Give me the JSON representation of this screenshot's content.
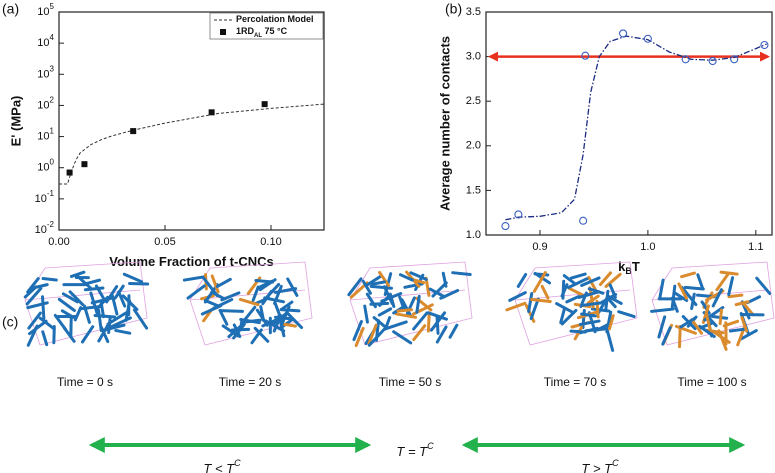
{
  "chart_data": [
    {
      "type": "scatter",
      "panel_label": "(a)",
      "xlabel": "Volume Fraction of t-CNCs",
      "ylabel": "E' (MPa)",
      "log_y": true,
      "xlim": [
        0,
        0.125
      ],
      "xticks": [
        {
          "value": 0,
          "label": "0.00"
        },
        0.05,
        {
          "value": 0.1,
          "label": "0.10"
        }
      ],
      "ylim": [
        0.01,
        100000
      ],
      "yticks": [
        {
          "value": 0.01,
          "label": "10",
          "exponent": "-2"
        },
        {
          "value": 0.1,
          "label": "10",
          "exponent": "-1"
        },
        {
          "value": 1,
          "label": "10",
          "exponent": "0"
        },
        {
          "value": 10,
          "label": "10",
          "exponent": "1"
        },
        {
          "value": 100,
          "label": "10",
          "exponent": "2"
        },
        {
          "value": 1000,
          "label": "10",
          "exponent": "3"
        },
        {
          "value": 10000,
          "label": "10",
          "exponent": "4"
        },
        {
          "value": 100000,
          "label": "10",
          "exponent": "5"
        }
      ],
      "series": [
        {
          "name": "Percolation Model",
          "style": "dashed-line",
          "color": "#333333",
          "x": [
            0,
            0.004,
            0.006,
            0.008,
            0.01,
            0.015,
            0.02,
            0.025,
            0.035,
            0.05,
            0.075,
            0.1,
            0.125
          ],
          "values": [
            0.3,
            0.3,
            0.8,
            1.8,
            3,
            5.5,
            8,
            10.5,
            16,
            27,
            55,
            80,
            110
          ]
        },
        {
          "name": "1RD",
          "subscript": "AL",
          "suffix": " 75 °C",
          "style": "square-markers",
          "color": "#111111",
          "x": [
            0.005,
            0.012,
            0.035,
            0.072,
            0.097
          ],
          "values": [
            0.7,
            1.3,
            15,
            60,
            110
          ]
        }
      ]
    },
    {
      "type": "scatter",
      "panel_label": "(b)",
      "xlabel": "k",
      "xlabel_sub": "B",
      "xlabel_suffix": "T",
      "ylabel": "Average number of contacts",
      "xlim": [
        0.85,
        1.115
      ],
      "xticks": [
        0.9,
        {
          "value": 1,
          "label": "1.0"
        },
        1.1
      ],
      "ylim": [
        1,
        3.5
      ],
      "yticks": [
        {
          "value": 1,
          "label": "1.0"
        },
        1.5,
        {
          "value": 2,
          "label": "2.0"
        },
        2.5,
        {
          "value": 3,
          "label": "3.0"
        },
        3.5
      ],
      "hline": {
        "value": 3,
        "color": "#e8311f"
      },
      "series": [
        {
          "style": "dashdot-line",
          "color": "#1c2b80",
          "x": [
            0.868,
            0.88,
            0.9,
            0.92,
            0.932,
            0.94,
            0.947,
            0.955,
            0.965,
            0.98,
            1.0,
            1.02,
            1.04,
            1.06,
            1.08,
            1.1,
            1.11
          ],
          "values": [
            1.17,
            1.2,
            1.21,
            1.25,
            1.4,
            1.9,
            2.6,
            3.0,
            3.17,
            3.23,
            3.19,
            3.05,
            2.97,
            2.96,
            2.99,
            3.09,
            3.14
          ]
        },
        {
          "style": "open-circles",
          "color": "#3b5fc0",
          "x": [
            0.868,
            0.88,
            0.94,
            0.942,
            0.977,
            1.0,
            1.035,
            1.06,
            1.08,
            1.108
          ],
          "values": [
            1.1,
            1.23,
            1.16,
            3.01,
            3.26,
            3.2,
            2.97,
            2.95,
            2.97,
            3.13
          ]
        }
      ]
    }
  ],
  "panel_c": {
    "label": "(c)",
    "times": [
      "Time = 0 s",
      "Time = 20 s",
      "Time = 50 s",
      "Time = 70 s",
      "Time = 100 s"
    ],
    "regimes": [
      {
        "text": "T < T",
        "sup": "C"
      },
      {
        "text": "T = T",
        "sup": "C"
      },
      {
        "text": "T > T",
        "sup": "C"
      }
    ]
  }
}
